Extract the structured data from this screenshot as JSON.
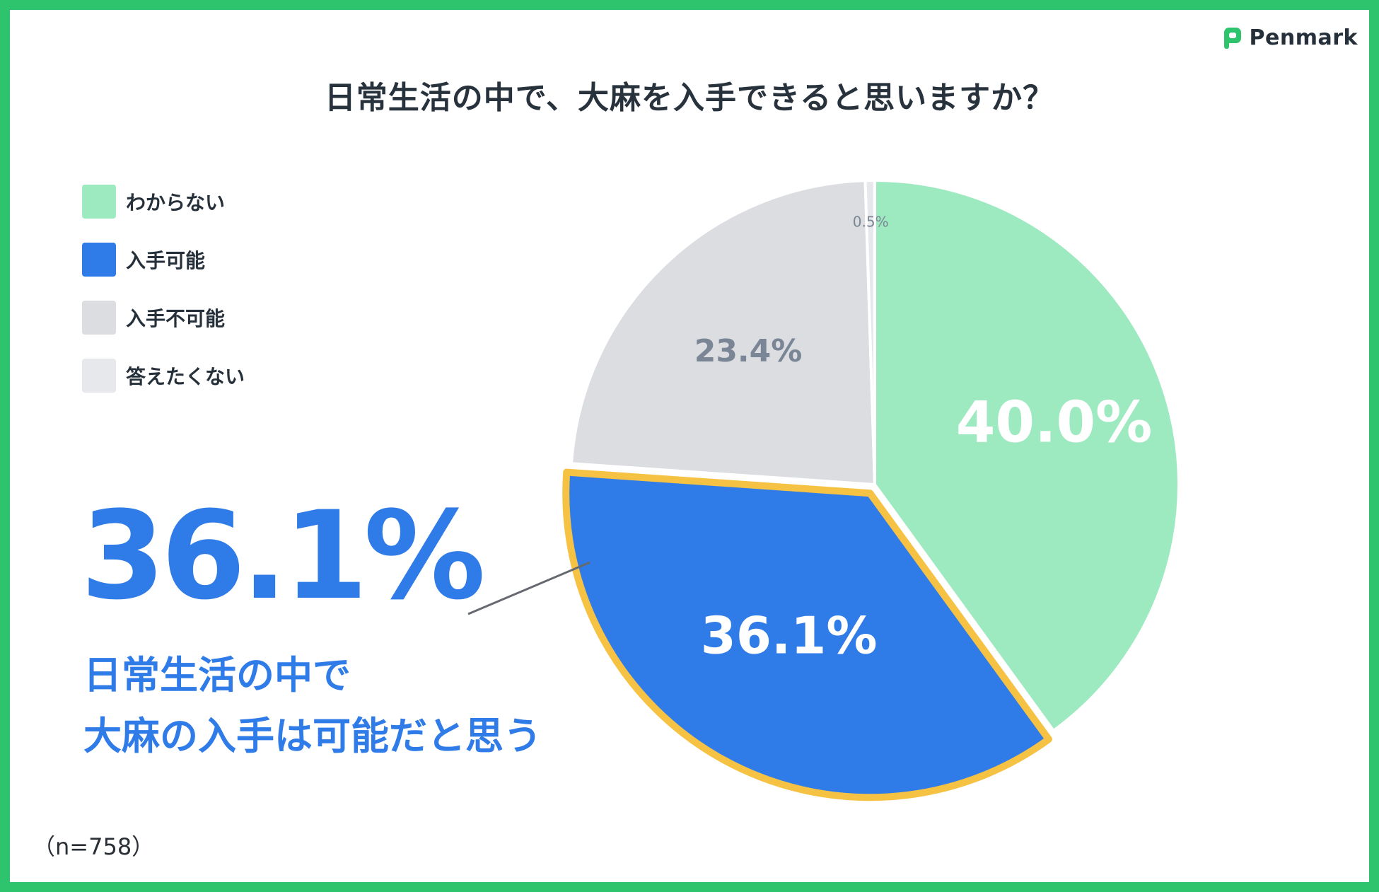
{
  "brand": {
    "name": "Penmark",
    "icon": "penmark-logo-icon",
    "color": "#2ec46e"
  },
  "title": "日常生活の中で、大麻を入手できると思いますか？",
  "highlight": {
    "value_text": "36.1%",
    "line1": "日常生活の中で",
    "line2": "大麻の入手は可能だと思う"
  },
  "sample_size": "（n=758）",
  "chart_data": {
    "type": "pie",
    "title": "日常生活の中で、大麻を入手できると思いますか？",
    "legend_position": "left",
    "slices": [
      {
        "name": "わからない",
        "value": 40.0,
        "label": "40.0%",
        "color": "#9de9c0",
        "label_color": "#ffffff"
      },
      {
        "name": "入手可能",
        "value": 36.1,
        "label": "36.1%",
        "color": "#2f7be8",
        "label_color": "#ffffff",
        "highlighted": true,
        "highlight_color": "#f5c243"
      },
      {
        "name": "入手不可能",
        "value": 23.4,
        "label": "23.4%",
        "color": "#dbdde1",
        "label_color": "#7a8595"
      },
      {
        "name": "答えたくない",
        "value": 0.5,
        "label": "0.5%",
        "color": "#e6e8eb",
        "label_color": "#7a8595"
      }
    ]
  }
}
